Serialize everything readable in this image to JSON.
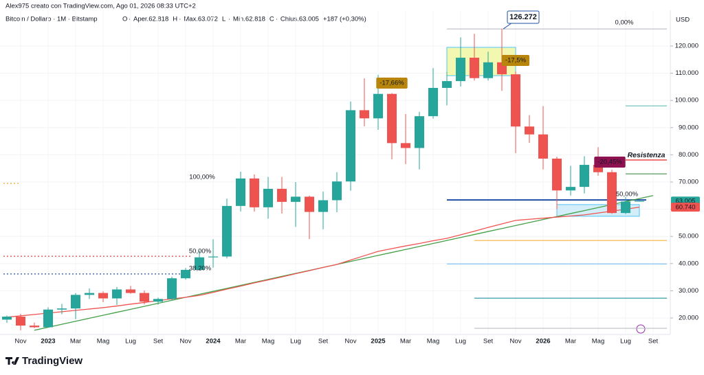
{
  "chart_data": {
    "type": "candlestick",
    "header": {
      "creator": "Alex975 creato con TradingView.com, Ago 01, 2026 08:33 UTC+2",
      "symbol": "Bitcoin / Dollaro · 1M · Bitstamp",
      "items": [
        {
          "key": "O",
          "label": "Aper.",
          "value": "62.818"
        },
        {
          "key": "H",
          "label": "Max.",
          "value": "63.072"
        },
        {
          "key": "L",
          "label": "Min.",
          "value": "62.818"
        },
        {
          "key": "C",
          "label": "Chius.",
          "value": "63.005"
        }
      ],
      "change": "+187 (+0,30%)"
    },
    "currency": "USD",
    "brand": "TradingView",
    "categories": [
      null,
      "Nov",
      null,
      "2023",
      null,
      "Mar",
      null,
      "Mag",
      null,
      "Lug",
      null,
      "Set",
      null,
      "Nov",
      null,
      "2024",
      null,
      "Mar",
      null,
      "Mag",
      null,
      "Lug",
      null,
      "Set",
      null,
      "Nov",
      null,
      "2025",
      null,
      "Mar",
      null,
      "Mag",
      null,
      "Lug",
      null,
      "Set",
      null,
      "Nov",
      null,
      "2026",
      null,
      "Mar",
      null,
      "Mag",
      null,
      "Lug",
      null,
      "Set"
    ],
    "open": [
      19400,
      20500,
      17200,
      16600,
      23100,
      23500,
      28500,
      29200,
      27200,
      30500,
      29200,
      26000,
      27000,
      34600,
      37700,
      42300,
      42600,
      61200,
      71300,
      60700,
      67500,
      62700,
      64600,
      59000,
      63300,
      70200,
      96400,
      93400,
      102400,
      84300,
      82500,
      94200,
      104600,
      107100,
      115700,
      108200,
      114000,
      109600,
      90400,
      87500,
      78600,
      66900,
      68200,
      76300,
      73600,
      58600,
      62818,
      null
    ],
    "high": [
      20900,
      21500,
      18300,
      23900,
      25200,
      29200,
      30900,
      29800,
      31400,
      31800,
      30100,
      27500,
      35200,
      38400,
      44700,
      48900,
      63900,
      73800,
      72800,
      71900,
      71900,
      70000,
      65000,
      66500,
      73600,
      99600,
      108100,
      109400,
      102700,
      95000,
      95800,
      111900,
      110500,
      123200,
      124500,
      117900,
      126272,
      110600,
      94600,
      97900,
      79300,
      76000,
      79500,
      82800,
      74500,
      64500,
      63072,
      null
    ],
    "low": [
      18200,
      15500,
      16300,
      16500,
      21400,
      19600,
      27000,
      25800,
      24800,
      28900,
      25000,
      24900,
      26500,
      34100,
      37600,
      38500,
      41900,
      59200,
      59100,
      56500,
      58400,
      53500,
      49000,
      52600,
      58900,
      66800,
      90500,
      89200,
      78300,
      76600,
      74600,
      93300,
      98200,
      105100,
      107300,
      107300,
      103500,
      80600,
      84400,
      74600,
      60000,
      65000,
      65800,
      72300,
      58300,
      58200,
      62818,
      null
    ],
    "close": [
      20500,
      17200,
      16600,
      23100,
      23500,
      28500,
      29200,
      27200,
      30500,
      29200,
      26000,
      27000,
      34600,
      37700,
      42300,
      42600,
      61200,
      71300,
      60700,
      67500,
      62700,
      64600,
      59000,
      63300,
      70200,
      96400,
      93400,
      102400,
      84300,
      82500,
      94200,
      104600,
      107100,
      115700,
      108200,
      114000,
      109600,
      90400,
      87500,
      78600,
      66900,
      68200,
      76300,
      73600,
      58600,
      62818,
      63005,
      null
    ],
    "up_color": "#26a69a",
    "down_color": "#ef5350",
    "ma": {
      "color": "#ef5350",
      "values": [
        20300,
        20800,
        21300,
        21800,
        22300,
        22800,
        23300,
        23800,
        24400,
        25100,
        25700,
        26400,
        27000,
        27600,
        28300,
        29400,
        30600,
        31700,
        32900,
        34000,
        35100,
        36300,
        37400,
        38600,
        39700,
        41300,
        42900,
        44500,
        45500,
        46500,
        47400,
        48400,
        49300,
        50600,
        51900,
        53300,
        54600,
        55900,
        56300,
        56700,
        57100,
        57500,
        57900,
        58600,
        59300,
        60000,
        60740,
        null
      ]
    },
    "trendline": {
      "color": "#43a047",
      "values": [
        null,
        null,
        15500,
        16600,
        17700,
        18800,
        19900,
        21000,
        22100,
        23200,
        24300,
        25400,
        26500,
        27600,
        28700,
        29800,
        30900,
        32000,
        33100,
        34200,
        35300,
        36400,
        37500,
        38600,
        39700,
        40800,
        41900,
        43000,
        44100,
        45200,
        46300,
        47400,
        48500,
        49600,
        50700,
        51800,
        52900,
        54000,
        55100,
        56200,
        57300,
        58400,
        59500,
        60600,
        61700,
        62800,
        63900,
        65000
      ]
    },
    "ylim": [
      13940,
      133130
    ],
    "yticks": [
      {
        "value": 20000,
        "label": "20.000"
      },
      {
        "value": 30000,
        "label": "30.000"
      },
      {
        "value": 40000,
        "label": "40.000"
      },
      {
        "value": 50000,
        "label": "50.000"
      },
      {
        "value": 60000,
        "label": "60.000"
      },
      {
        "value": 70000,
        "label": "70.000"
      },
      {
        "value": 80000,
        "label": "80.000"
      },
      {
        "value": 90000,
        "label": "90.000"
      },
      {
        "value": 100000,
        "label": "100.000"
      },
      {
        "value": 110000,
        "label": "110.000"
      },
      {
        "value": 120000,
        "label": "120.000"
      }
    ],
    "grid": true,
    "levels": [
      {
        "value": 126272,
        "color": "#b2b5be"
      },
      {
        "value": 98000,
        "color": "#4db6ac"
      },
      {
        "value": 73000,
        "color": "#2e7d32"
      },
      {
        "value": 63400,
        "color": "#1e4fa3"
      },
      {
        "value": 48500,
        "color": "#f5a623"
      },
      {
        "value": 39900,
        "color": "#64b5f6"
      },
      {
        "value": 27300,
        "color": "#00838f"
      },
      {
        "value": 16200,
        "color": "#b2b5be"
      },
      {
        "value": 42700,
        "color": "#e53935"
      },
      {
        "value": 36200,
        "color": "#1e4fa3"
      },
      {
        "value": 69500,
        "color": "#f5a623"
      },
      {
        "value": 78100,
        "color": "#e53935"
      }
    ],
    "zones": [
      {
        "top": 119500,
        "bottom": 109100,
        "color": "#f3f8b0",
        "border": "#4fc3f7"
      },
      {
        "top": 61700,
        "bottom": 57400,
        "color": "#d4eef9",
        "border": "#4fc3f7"
      }
    ],
    "ath": {
      "value": 126272,
      "label": "126.272"
    },
    "annotations": [
      {
        "text": "-17,66%",
        "color": "#b8860b"
      },
      {
        "text": "-17,5%",
        "color": "#b8860b"
      },
      {
        "text": "-20,45%",
        "color": "#8e1150"
      },
      {
        "text": "Resistenza",
        "color": "#e53935"
      },
      {
        "text": "100,00%",
        "color": "#b2b5be"
      },
      {
        "text": "50,00%",
        "color": "#e53935"
      },
      {
        "text": "38,20%",
        "color": "#1e4fa3"
      },
      {
        "text": "0,00%",
        "color": "#b2b5be"
      },
      {
        "text": "50,00%",
        "color": "#1e4fa3"
      }
    ],
    "price_tags": [
      {
        "value": 63005,
        "label": "63.005",
        "color": "#26a69a"
      },
      {
        "value": 60740,
        "label": "60.740",
        "color": "#ef5350"
      }
    ]
  }
}
